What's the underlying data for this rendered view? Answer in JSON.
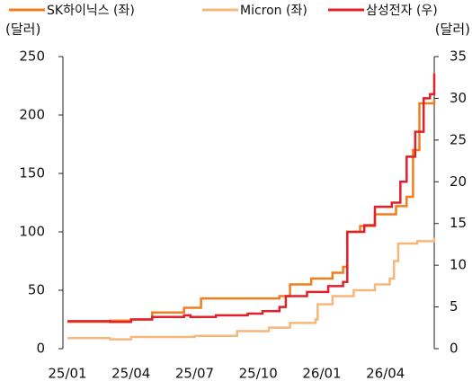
{
  "chart_data": {
    "type": "line",
    "y_label": "(달러)",
    "y2_label": "(달러)",
    "xlim": [
      0,
      17.3
    ],
    "xticks": [
      {
        "value": 0,
        "label": "25/01"
      },
      {
        "value": 3,
        "label": "25/04"
      },
      {
        "value": 6,
        "label": "25/07"
      },
      {
        "value": 9,
        "label": "25/10"
      },
      {
        "value": 12,
        "label": "26/01"
      },
      {
        "value": 15,
        "label": "26/04"
      }
    ],
    "ylim": [
      0,
      250
    ],
    "yticks": [
      0,
      50,
      100,
      150,
      200,
      250
    ],
    "y2lim": [
      0,
      35
    ],
    "y2ticks": [
      0,
      5,
      10,
      15,
      20,
      25,
      30,
      35
    ],
    "series": [
      {
        "name": "SK하이닉스 (좌)",
        "color": "#f07d1e",
        "x": [
          0,
          2,
          3,
          4,
          5.5,
          6.3,
          9.3,
          10,
          10.5,
          11.5,
          12.5,
          13,
          13.2,
          13.8,
          14.5,
          15.5,
          16,
          16.3,
          16.6,
          17,
          17.3
        ],
        "values": [
          23,
          24,
          25,
          31,
          35,
          43,
          43,
          45,
          55,
          60,
          65,
          70,
          100,
          105,
          115,
          122,
          130,
          170,
          210,
          210,
          213
        ]
      },
      {
        "name": "Micron (좌)",
        "color": "#f5b77a",
        "x": [
          0,
          2,
          3,
          6,
          8,
          9.5,
          10.5,
          11.7,
          11.8,
          12.5,
          13.5,
          14.5,
          15.2,
          15.4,
          15.6,
          16.5,
          17.3
        ],
        "values": [
          9,
          8,
          10,
          11,
          15,
          18,
          22,
          25,
          38,
          45,
          50,
          55,
          60,
          75,
          90,
          92,
          95
        ]
      },
      {
        "name": "삼성전자 (우)",
        "color": "#e0202a",
        "axis": "y2",
        "x": [
          0,
          2,
          3,
          4,
          5.5,
          5.8,
          7,
          8.5,
          9.2,
          10,
          10.3,
          11.3,
          12.3,
          13,
          13.2,
          14,
          14.5,
          15.3,
          15.7,
          16,
          16.4,
          16.8,
          17.1,
          17.3
        ],
        "values": [
          3.3,
          3.2,
          3.5,
          3.8,
          4.0,
          3.8,
          4.0,
          4.2,
          4.5,
          5.0,
          6.3,
          6.8,
          7.5,
          8.0,
          14,
          14.8,
          17,
          17.5,
          20,
          23,
          26,
          30,
          30.5,
          33
        ]
      }
    ]
  }
}
